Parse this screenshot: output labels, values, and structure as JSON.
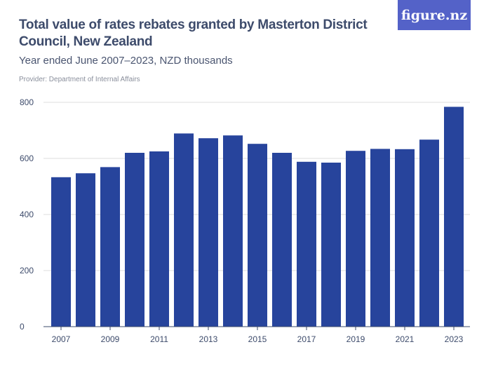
{
  "header": {
    "title": "Total value of rates rebates granted by Masterton District Council, New Zealand",
    "subtitle": "Year ended June 2007–2023, NZD thousands",
    "provider": "Provider: Department of Internal Affairs",
    "logo": "figure.nz"
  },
  "chart_data": {
    "type": "bar",
    "title": "Total value of rates rebates granted by Masterton District Council, New Zealand",
    "subtitle": "Year ended June 2007–2023, NZD thousands",
    "categories": [
      "2007",
      "2008",
      "2009",
      "2010",
      "2011",
      "2012",
      "2013",
      "2014",
      "2015",
      "2016",
      "2017",
      "2018",
      "2019",
      "2020",
      "2021",
      "2022",
      "2023"
    ],
    "values": [
      533,
      547,
      569,
      620,
      625,
      689,
      672,
      682,
      652,
      620,
      588,
      585,
      627,
      634,
      633,
      667,
      784
    ],
    "x_tick_labels": [
      "2007",
      "2009",
      "2011",
      "2013",
      "2015",
      "2017",
      "2019",
      "2021",
      "2023"
    ],
    "y_ticks": [
      0,
      200,
      400,
      600,
      800
    ],
    "ylim": [
      0,
      800
    ],
    "grid": true,
    "bar_color": "#27449c"
  }
}
